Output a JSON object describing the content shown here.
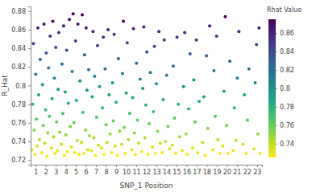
{
  "chart_data": {
    "type": "scatter",
    "x_label": "SNP_1 Position",
    "y_label": "R_Hat",
    "color": "viridis",
    "grid": false,
    "xlim": [
      0.5,
      23.5
    ],
    "xticks": [
      1,
      2,
      3,
      4,
      5,
      6,
      7,
      8,
      9,
      10,
      11,
      12,
      13,
      14,
      15,
      16,
      17,
      18,
      19,
      20,
      21,
      22,
      23
    ],
    "ylim": [
      0.715,
      0.885
    ],
    "yticks": [
      0.72,
      0.74,
      0.76,
      0.78,
      0.8,
      0.82,
      0.84,
      0.86,
      0.88
    ],
    "colorbar": {
      "title": "Rhat Value",
      "range": [
        0.725,
        0.875
      ],
      "ticks": [
        0.74,
        0.76,
        0.78,
        0.8,
        0.82,
        0.84,
        0.86
      ]
    },
    "x": [
      0.62,
      0.7,
      0.78,
      0.85,
      0.93,
      1.0,
      1.08,
      1.15,
      1.22,
      1.3,
      1.38,
      1.45,
      1.6,
      1.68,
      1.75,
      1.83,
      1.9,
      1.98,
      2.05,
      2.13,
      2.2,
      2.28,
      2.36,
      2.44,
      2.56,
      2.63,
      2.7,
      2.78,
      2.86,
      2.93,
      3.0,
      3.08,
      3.15,
      3.23,
      3.3,
      3.4,
      3.55,
      3.62,
      3.7,
      3.78,
      3.85,
      3.93,
      4.0,
      4.08,
      4.15,
      4.25,
      4.35,
      4.44,
      4.55,
      4.63,
      4.72,
      4.8,
      4.88,
      4.97,
      5.05,
      5.13,
      5.2,
      5.3,
      5.4,
      5.55,
      5.63,
      5.7,
      5.78,
      5.86,
      5.95,
      6.02,
      6.1,
      6.18,
      6.27,
      6.35,
      6.55,
      6.62,
      6.7,
      6.78,
      6.86,
      6.95,
      7.05,
      7.15,
      7.25,
      7.35,
      7.55,
      7.63,
      7.72,
      7.8,
      7.9,
      8.0,
      8.1,
      8.2,
      8.3,
      8.4,
      8.55,
      8.63,
      8.72,
      8.8,
      8.9,
      9.0,
      9.1,
      9.22,
      9.35,
      9.55,
      9.63,
      9.72,
      9.8,
      9.9,
      10.0,
      10.1,
      10.22,
      10.35,
      10.55,
      10.63,
      10.72,
      10.82,
      10.92,
      11.02,
      11.12,
      11.25,
      11.38,
      11.55,
      11.65,
      11.75,
      11.85,
      11.95,
      12.05,
      12.15,
      12.28,
      12.4,
      12.6,
      12.7,
      12.8,
      12.9,
      13.0,
      13.12,
      13.25,
      13.38,
      13.58,
      13.68,
      13.78,
      13.9,
      14.02,
      14.15,
      14.3,
      14.58,
      14.68,
      14.8,
      14.92,
      15.05,
      15.18,
      15.3,
      15.58,
      15.7,
      15.82,
      15.95,
      16.08,
      16.2,
      16.35,
      16.6,
      16.72,
      16.85,
      16.98,
      17.1,
      17.25,
      17.6,
      17.72,
      17.85,
      17.98,
      18.12,
      18.3,
      18.6,
      18.72,
      18.85,
      18.98,
      19.12,
      19.3,
      19.6,
      19.72,
      19.85,
      19.98,
      20.12,
      20.3,
      20.62,
      20.75,
      20.9,
      21.05,
      21.2,
      21.62,
      21.75,
      21.9,
      22.05,
      22.2,
      22.7,
      22.82,
      22.95,
      23.08,
      23.2,
      23.3
    ],
    "values": [
      0.731,
      0.78,
      0.845,
      0.752,
      0.726,
      0.812,
      0.764,
      0.735,
      0.862,
      0.79,
      0.742,
      0.828,
      0.728,
      0.801,
      0.757,
      0.866,
      0.738,
      0.774,
      0.835,
      0.724,
      0.749,
      0.819,
      0.767,
      0.853,
      0.733,
      0.786,
      0.869,
      0.745,
      0.808,
      0.727,
      0.841,
      0.761,
      0.73,
      0.796,
      0.857,
      0.75,
      0.737,
      0.823,
      0.77,
      0.864,
      0.725,
      0.793,
      0.747,
      0.838,
      0.729,
      0.781,
      0.871,
      0.756,
      0.734,
      0.815,
      0.877,
      0.76,
      0.728,
      0.848,
      0.784,
      0.741,
      0.866,
      0.726,
      0.805,
      0.739,
      0.876,
      0.771,
      0.727,
      0.833,
      0.752,
      0.862,
      0.795,
      0.731,
      0.817,
      0.746,
      0.73,
      0.788,
      0.858,
      0.744,
      0.81,
      0.725,
      0.766,
      0.843,
      0.736,
      0.799,
      0.733,
      0.776,
      0.852,
      0.726,
      0.818,
      0.758,
      0.739,
      0.86,
      0.79,
      0.748,
      0.728,
      0.803,
      0.762,
      0.855,
      0.735,
      0.782,
      0.725,
      0.829,
      0.751,
      0.737,
      0.813,
      0.869,
      0.755,
      0.727,
      0.792,
      0.846,
      0.742,
      0.77,
      0.731,
      0.787,
      0.861,
      0.749,
      0.726,
      0.824,
      0.763,
      0.738,
      0.807,
      0.729,
      0.797,
      0.863,
      0.744,
      0.779,
      0.836,
      0.726,
      0.759,
      0.814,
      0.734,
      0.772,
      0.842,
      0.727,
      0.802,
      0.751,
      0.858,
      0.738,
      0.728,
      0.785,
      0.849,
      0.74,
      0.811,
      0.756,
      0.732,
      0.736,
      0.821,
      0.765,
      0.727,
      0.852,
      0.78,
      0.745,
      0.73,
      0.799,
      0.857,
      0.748,
      0.726,
      0.775,
      0.834,
      0.733,
      0.806,
      0.761,
      0.849,
      0.728,
      0.783,
      0.739,
      0.788,
      0.725,
      0.832,
      0.754,
      0.864,
      0.731,
      0.816,
      0.767,
      0.853,
      0.742,
      0.727,
      0.735,
      0.794,
      0.874,
      0.757,
      0.727,
      0.826,
      0.73,
      0.776,
      0.741,
      0.808,
      0.858,
      0.737,
      0.79,
      0.727,
      0.763,
      0.818,
      0.732,
      0.803,
      0.844,
      0.748,
      0.862,
      0.727
    ]
  }
}
